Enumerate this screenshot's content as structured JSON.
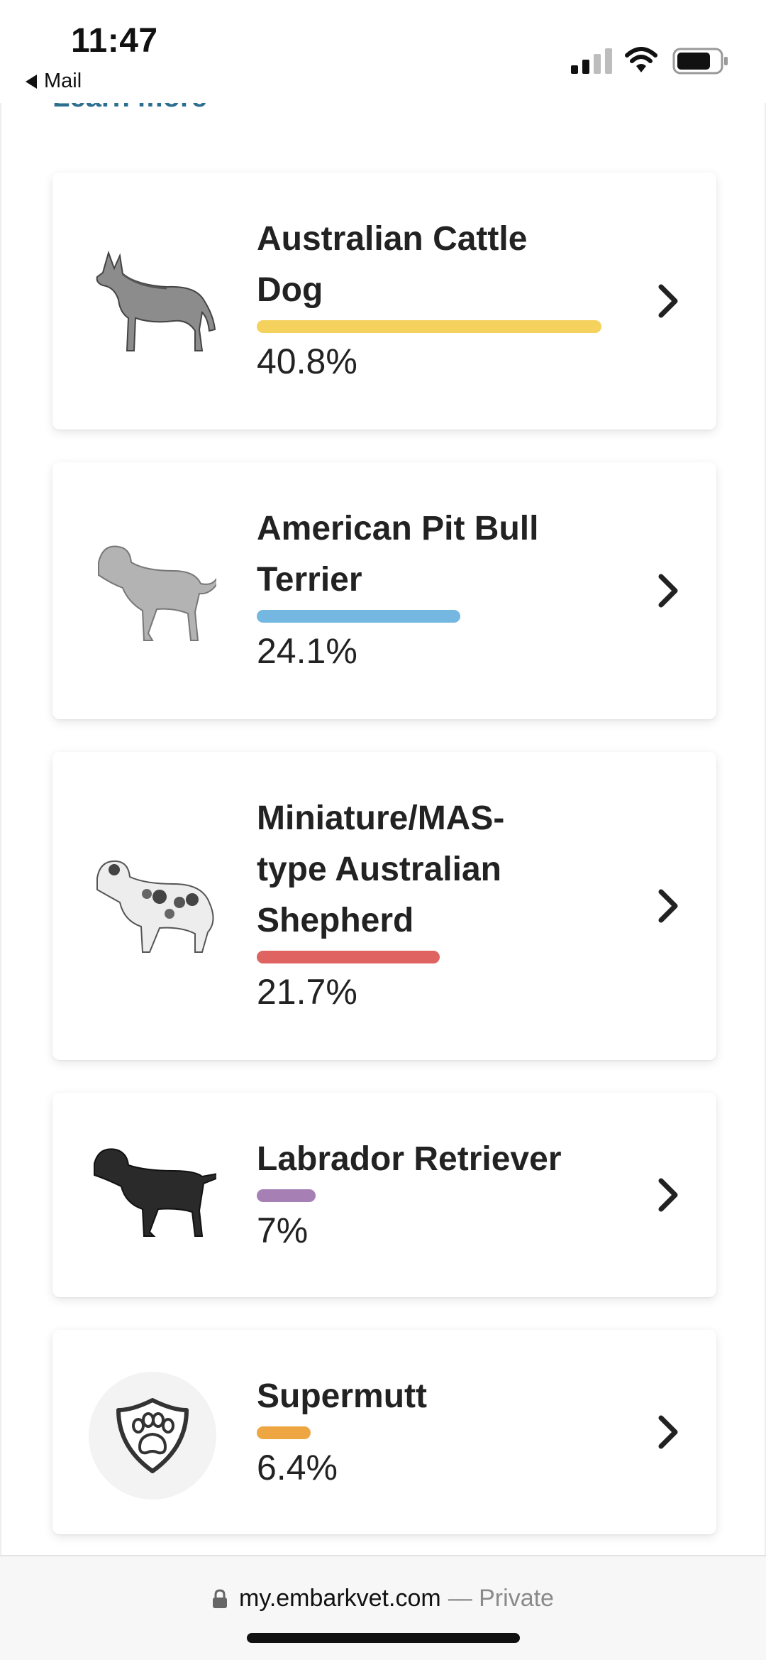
{
  "status_bar": {
    "time": "11:47",
    "back_label": "Mail"
  },
  "page": {
    "learn_more": "Learn more"
  },
  "breeds": [
    {
      "name_lines": [
        "Australian Cattle",
        "Dog"
      ],
      "percent_text": "40.8%",
      "percent": 40.8,
      "bar_color": "#f5d25e",
      "icon": "australian-cattle-dog-illustration"
    },
    {
      "name_lines": [
        "American Pit Bull",
        "Terrier"
      ],
      "percent_text": "24.1%",
      "percent": 24.1,
      "bar_color": "#74b7e0",
      "icon": "american-pit-bull-terrier-illustration"
    },
    {
      "name_lines": [
        "Miniature/MAS-",
        "type Australian",
        "Shepherd"
      ],
      "percent_text": "21.7%",
      "percent": 21.7,
      "bar_color": "#df6360",
      "icon": "australian-shepherd-illustration"
    },
    {
      "name_lines": [
        "Labrador Retriever"
      ],
      "percent_text": "7%",
      "percent": 7,
      "bar_color": "#a67fb5",
      "icon": "labrador-retriever-illustration"
    },
    {
      "name_lines": [
        "Supermutt"
      ],
      "percent_text": "6.4%",
      "percent": 6.4,
      "bar_color": "#eda642",
      "icon": "paw-shield-icon"
    }
  ],
  "browser": {
    "url": "my.embarkvet.com",
    "mode": "— Private"
  }
}
